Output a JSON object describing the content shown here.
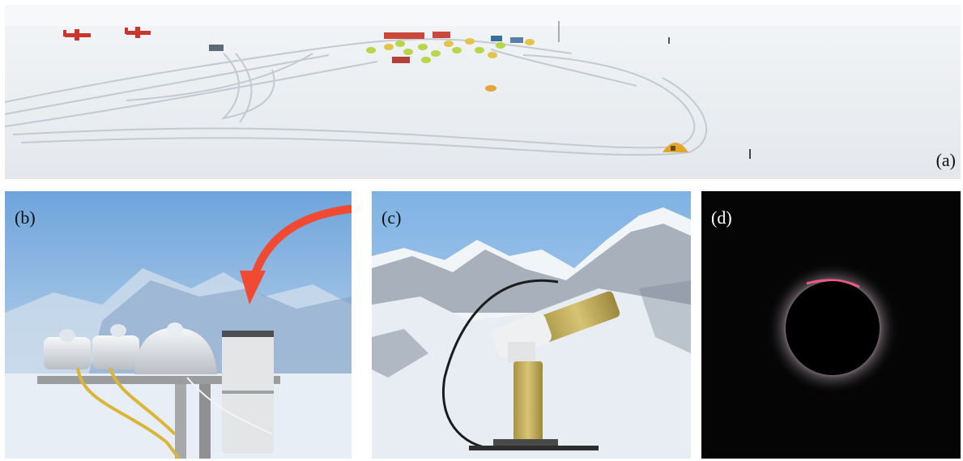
{
  "panels": {
    "a": {
      "label": "(a)"
    },
    "b": {
      "label": "(b)"
    },
    "c": {
      "label": "(c)"
    },
    "d": {
      "label": "(d)"
    }
  },
  "colors": {
    "snow": "#eef1f4",
    "sky": "#8ab3de",
    "arrow": "#f04a32",
    "instrument_gold": "#c9b35a",
    "eclipse_bg": "#050505",
    "corona": "#e4c9d6"
  }
}
